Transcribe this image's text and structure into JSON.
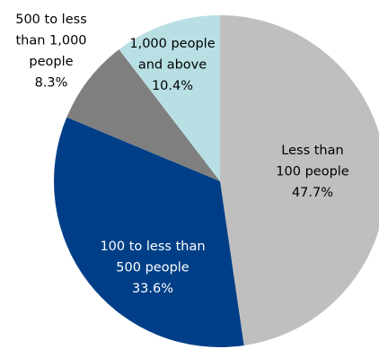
{
  "chart_data": {
    "type": "pie",
    "title": "",
    "start_angle_deg": 0,
    "direction": "clockwise",
    "legend": "none",
    "slices": [
      {
        "category": "Less than 100 people",
        "value": 47.7,
        "label_lines": [
          "Less than",
          "100 people",
          "47.7%"
        ],
        "color": "#bfbfbf",
        "label_color": "#000000"
      },
      {
        "category": "100 to less than 500 people",
        "value": 33.6,
        "label_lines": [
          "100 to less than",
          "500 people",
          "33.6%"
        ],
        "color": "#003f87",
        "label_color": "#ffffff"
      },
      {
        "category": "500 to less than 1,000 people",
        "value": 8.3,
        "label_lines": [
          "500 to less",
          "than 1,000",
          "people",
          "8.3%"
        ],
        "color": "#7f7f7f",
        "label_color": "#000000"
      },
      {
        "category": "1,000 people and above",
        "value": 10.4,
        "label_lines": [
          "1,000 people",
          "and above",
          "10.4%"
        ],
        "color": "#b8dfe4",
        "label_color": "#000000"
      }
    ]
  }
}
